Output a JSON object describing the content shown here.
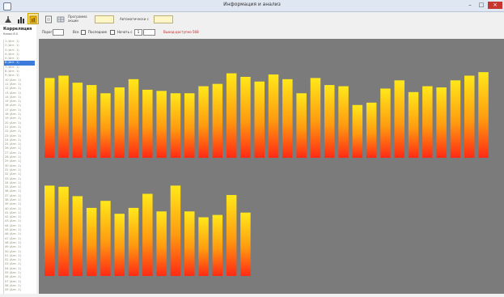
{
  "window": {
    "title": "Информация и анализ",
    "min_label": "–",
    "max_label": "□",
    "close_label": "×"
  },
  "toolbar": {
    "label1": "Программа\nакции",
    "label2": "Автоматически с"
  },
  "left_panel": {
    "title": "Корреляция",
    "subtitle": "Канал 8.0",
    "items": [
      "1 (Ант. 1)",
      "2 (Ант. 1)",
      "3 (Ант. 1)",
      "4 (Ант. 1)",
      "5 (Ант. 1)",
      "6 (Ант. 1)",
      "7 (Ант. 1)",
      "8 (Ант. 1)",
      "9 (Ант. 1)",
      "10 (Ант. 1)",
      "11 (Ант. 1)",
      "12 (Ант. 1)",
      "13 (Ант. 1)",
      "14 (Ант. 1)",
      "15 (Ант. 1)",
      "16 (Ант. 1)",
      "17 (Ант. 1)",
      "18 (Ант. 1)",
      "19 (Ант. 1)",
      "20 (Ант. 1)",
      "21 (Ант. 1)",
      "22 (Ант. 1)",
      "23 (Ант. 1)",
      "24 (Ант. 1)",
      "25 (Ант. 1)",
      "26 (Ант. 1)",
      "27 (Ант. 1)",
      "28 (Ант. 1)",
      "29 (Ант. 1)",
      "30 (Ант. 1)",
      "31 (Ант. 1)",
      "32 (Ант. 1)",
      "33 (Ант. 1)",
      "34 (Ант. 1)",
      "35 (Ант. 1)",
      "36 (Ант. 1)",
      "37 (Ант. 1)",
      "38 (Ант. 1)",
      "39 (Ант. 1)",
      "40 (Ант. 1)",
      "41 (Ант. 1)",
      "42 (Ант. 1)",
      "43 (Ант. 1)",
      "44 (Ант. 1)",
      "45 (Ант. 1)",
      "46 (Ант. 1)",
      "47 (Ант. 1)",
      "48 (Ант. 1)",
      "49 (Ант. 1)",
      "50 (Ант. 1)",
      "51 (Ант. 1)",
      "52 (Ант. 1)",
      "53 (Ант. 1)",
      "54 (Ант. 1)",
      "55 (Ант. 1)",
      "56 (Ант. 1)",
      "57 (Ант. 1)",
      "58 (Ант. 1)",
      "59 (Ант. 1)"
    ],
    "selected_index": 5
  },
  "controls": {
    "label_porog": "Порог",
    "label_all": "Все",
    "label_last": "Последние",
    "label_start": "Начать с",
    "spinner_value": "1",
    "red_text": "Выход-доступно 568"
  },
  "colors": {
    "chart_bg": "#7b7b7b",
    "bar_top": "#ffe81a",
    "bar_mid": "#ff9a10",
    "bar_bottom": "#ff2a14"
  },
  "chart_data": {
    "type": "bar",
    "ylim": [
      0,
      100
    ],
    "panels": [
      {
        "values": [
          68,
          70,
          64,
          62,
          55,
          60,
          67,
          58,
          57,
          55,
          55,
          61,
          63,
          72,
          69,
          65,
          71,
          67,
          55,
          68,
          62,
          61,
          45,
          47,
          59,
          66,
          56,
          61,
          60,
          66,
          70,
          73
        ]
      },
      {
        "values": [
          77,
          76,
          68,
          58,
          64,
          53,
          58,
          70,
          55,
          77,
          55,
          50,
          52,
          69,
          54
        ]
      }
    ]
  }
}
